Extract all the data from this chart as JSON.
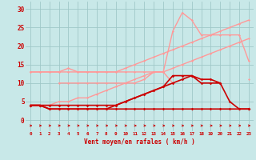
{
  "x": [
    0,
    1,
    2,
    3,
    4,
    5,
    6,
    7,
    8,
    9,
    10,
    11,
    12,
    13,
    14,
    15,
    16,
    17,
    18,
    19,
    20,
    21,
    22,
    23
  ],
  "lines": [
    {
      "label": "pink_linear_top",
      "color": "#FF9999",
      "linewidth": 1.0,
      "marker": "D",
      "markersize": 1.5,
      "y": [
        13,
        13,
        13,
        13,
        13,
        13,
        13,
        13,
        13,
        13,
        14,
        15,
        16,
        17,
        18,
        19,
        20,
        21,
        22,
        23,
        24,
        25,
        26,
        27
      ]
    },
    {
      "label": "pink_linear_bottom",
      "color": "#FF9999",
      "linewidth": 1.0,
      "marker": "D",
      "markersize": 1.5,
      "y": [
        4,
        4,
        4,
        5,
        5,
        6,
        6,
        7,
        8,
        9,
        10,
        11,
        12,
        13,
        13,
        14,
        15,
        16,
        17,
        18,
        19,
        20,
        21,
        22
      ]
    },
    {
      "label": "pink_zigzag_upper",
      "color": "#FF9999",
      "linewidth": 1.0,
      "marker": "D",
      "markersize": 1.5,
      "y": [
        13,
        13,
        13,
        13,
        14,
        13,
        13,
        13,
        13,
        13,
        13,
        13,
        13,
        13,
        13,
        24,
        29,
        27,
        23,
        23,
        23,
        23,
        23,
        16
      ]
    },
    {
      "label": "pink_middle",
      "color": "#FF9999",
      "linewidth": 1.0,
      "marker": "D",
      "markersize": 1.5,
      "y": [
        null,
        null,
        null,
        10,
        10,
        10,
        10,
        10,
        10,
        10,
        10,
        10,
        11,
        13,
        13,
        10,
        null,
        12,
        11,
        11,
        10,
        null,
        null,
        11
      ]
    },
    {
      "label": "dark_red_upper",
      "color": "#CC0000",
      "linewidth": 1.2,
      "marker": "D",
      "markersize": 1.8,
      "y": [
        4,
        4,
        4,
        4,
        4,
        4,
        4,
        4,
        4,
        4,
        5,
        6,
        7,
        8,
        9,
        12,
        12,
        12,
        11,
        11,
        10,
        5,
        3,
        3
      ]
    },
    {
      "label": "dark_red_lower",
      "color": "#CC0000",
      "linewidth": 1.2,
      "marker": "D",
      "markersize": 1.8,
      "y": [
        4,
        4,
        3,
        3,
        3,
        3,
        3,
        3,
        3,
        4,
        5,
        6,
        7,
        8,
        9,
        10,
        11,
        12,
        10,
        10,
        10,
        null,
        null,
        3
      ]
    },
    {
      "label": "dark_red_flat",
      "color": "#CC0000",
      "linewidth": 1.2,
      "marker": "D",
      "markersize": 1.8,
      "y": [
        4,
        4,
        3,
        3,
        3,
        3,
        3,
        3,
        3,
        3,
        3,
        3,
        3,
        3,
        3,
        3,
        3,
        3,
        3,
        3,
        3,
        3,
        3,
        3
      ]
    }
  ],
  "arrows_y": [
    0,
    1,
    2,
    3,
    4,
    5,
    6,
    7,
    8,
    9,
    10,
    11,
    12,
    13,
    14,
    15,
    16,
    17,
    18,
    19,
    20,
    21,
    22,
    23
  ],
  "background_color": "#C8E8E8",
  "grid_color": "#A0C8C8",
  "xlabel": "Vent moyen/en rafales ( km/h )",
  "xlabel_color": "#CC0000",
  "tick_color": "#CC0000",
  "ylim": [
    -3,
    32
  ],
  "xlim": [
    -0.5,
    23.5
  ],
  "yticks": [
    0,
    5,
    10,
    15,
    20,
    25,
    30
  ],
  "xticks": [
    0,
    1,
    2,
    3,
    4,
    5,
    6,
    7,
    8,
    9,
    10,
    11,
    12,
    13,
    14,
    15,
    16,
    17,
    18,
    19,
    20,
    21,
    22,
    23
  ]
}
